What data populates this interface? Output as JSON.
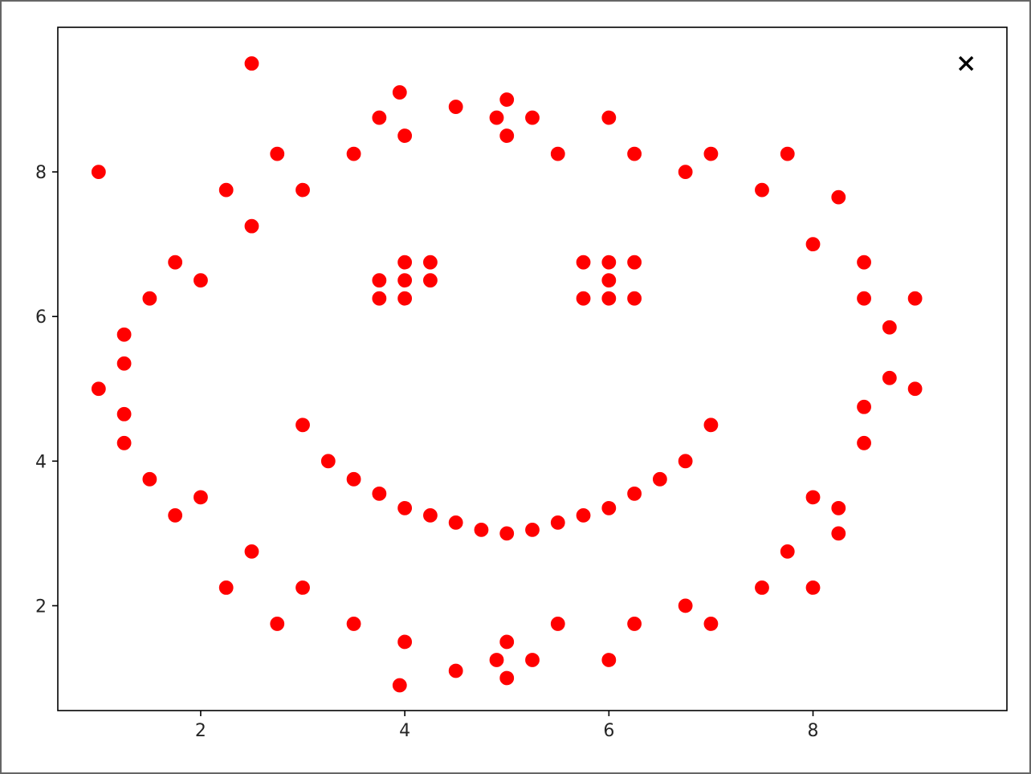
{
  "chart_data": {
    "type": "scatter",
    "title": "",
    "xlabel": "",
    "ylabel": "",
    "xlim": [
      0.6,
      9.9
    ],
    "ylim": [
      0.55,
      10.0
    ],
    "grid": false,
    "x_ticks": [
      2,
      4,
      6,
      8
    ],
    "y_ticks": [
      2,
      4,
      6,
      8
    ],
    "x_tick_labels": [
      "2",
      "4",
      "6",
      "8"
    ],
    "y_tick_labels": [
      "2",
      "4",
      "6",
      "8"
    ],
    "series": [
      {
        "marker": "circle",
        "color": "#ff0000",
        "points": [
          [
            1.0,
            8.0
          ],
          [
            2.5,
            9.5
          ],
          [
            2.25,
            7.75
          ],
          [
            2.5,
            7.25
          ],
          [
            2.75,
            8.25
          ],
          [
            3.0,
            7.75
          ],
          [
            3.5,
            8.25
          ],
          [
            3.75,
            8.75
          ],
          [
            3.95,
            9.1
          ],
          [
            4.0,
            8.5
          ],
          [
            4.5,
            8.9
          ],
          [
            4.9,
            8.75
          ],
          [
            5.0,
            9.0
          ],
          [
            5.0,
            8.5
          ],
          [
            5.25,
            8.75
          ],
          [
            5.5,
            8.25
          ],
          [
            6.0,
            8.75
          ],
          [
            6.25,
            8.25
          ],
          [
            6.75,
            8.0
          ],
          [
            7.0,
            8.25
          ],
          [
            7.5,
            7.75
          ],
          [
            7.75,
            8.25
          ],
          [
            8.25,
            7.65
          ],
          [
            8.0,
            7.0
          ],
          [
            1.75,
            6.75
          ],
          [
            2.0,
            6.5
          ],
          [
            1.5,
            6.25
          ],
          [
            1.25,
            5.75
          ],
          [
            1.25,
            5.35
          ],
          [
            1.0,
            5.0
          ],
          [
            1.25,
            4.65
          ],
          [
            1.25,
            4.25
          ],
          [
            1.5,
            3.75
          ],
          [
            1.75,
            3.25
          ],
          [
            2.0,
            3.5
          ],
          [
            2.5,
            2.75
          ],
          [
            2.25,
            2.25
          ],
          [
            3.0,
            2.25
          ],
          [
            2.75,
            1.75
          ],
          [
            3.5,
            1.75
          ],
          [
            4.0,
            1.5
          ],
          [
            3.95,
            0.9
          ],
          [
            4.5,
            1.1
          ],
          [
            4.9,
            1.25
          ],
          [
            5.0,
            1.5
          ],
          [
            5.0,
            1.0
          ],
          [
            5.25,
            1.25
          ],
          [
            5.5,
            1.75
          ],
          [
            6.0,
            1.25
          ],
          [
            6.25,
            1.75
          ],
          [
            6.75,
            2.0
          ],
          [
            7.0,
            1.75
          ],
          [
            7.5,
            2.25
          ],
          [
            7.75,
            2.75
          ],
          [
            8.0,
            2.25
          ],
          [
            8.0,
            3.5
          ],
          [
            8.25,
            3.35
          ],
          [
            8.25,
            3.0
          ],
          [
            8.5,
            6.75
          ],
          [
            8.5,
            6.25
          ],
          [
            9.0,
            6.25
          ],
          [
            8.75,
            5.85
          ],
          [
            8.75,
            5.15
          ],
          [
            9.0,
            5.0
          ],
          [
            8.5,
            4.75
          ],
          [
            8.5,
            4.25
          ],
          [
            3.75,
            6.5
          ],
          [
            3.75,
            6.25
          ],
          [
            4.0,
            6.75
          ],
          [
            4.0,
            6.5
          ],
          [
            4.0,
            6.25
          ],
          [
            4.25,
            6.75
          ],
          [
            4.25,
            6.5
          ],
          [
            5.75,
            6.75
          ],
          [
            5.75,
            6.25
          ],
          [
            6.0,
            6.75
          ],
          [
            6.0,
            6.5
          ],
          [
            6.0,
            6.25
          ],
          [
            6.25,
            6.75
          ],
          [
            6.25,
            6.25
          ],
          [
            3.0,
            4.5
          ],
          [
            3.25,
            4.0
          ],
          [
            3.5,
            3.75
          ],
          [
            3.75,
            3.55
          ],
          [
            4.0,
            3.35
          ],
          [
            4.25,
            3.25
          ],
          [
            4.5,
            3.15
          ],
          [
            4.75,
            3.05
          ],
          [
            5.0,
            3.0
          ],
          [
            5.25,
            3.05
          ],
          [
            5.5,
            3.15
          ],
          [
            5.75,
            3.25
          ],
          [
            6.0,
            3.35
          ],
          [
            6.25,
            3.55
          ],
          [
            6.5,
            3.75
          ],
          [
            6.75,
            4.0
          ],
          [
            7.0,
            4.5
          ]
        ]
      },
      {
        "marker": "x",
        "color": "#000000",
        "points": [
          [
            9.5,
            9.5
          ]
        ]
      }
    ]
  }
}
